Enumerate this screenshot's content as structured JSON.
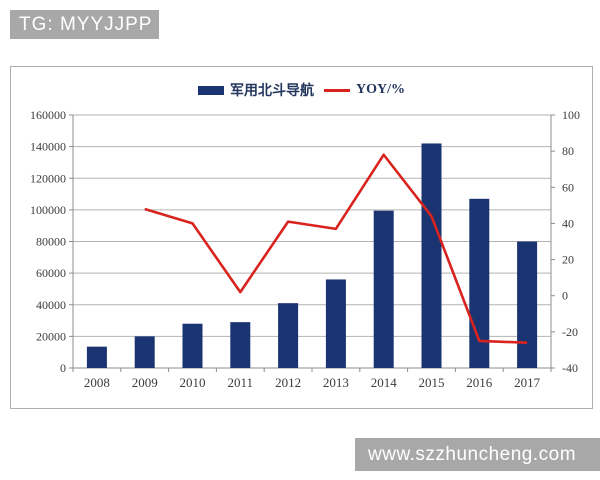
{
  "watermarks": {
    "top": "TG: MYYJJPP",
    "bottom": "www.szzhuncheng.com"
  },
  "legend": {
    "bar_label": "军用北斗导航",
    "line_label": "YOY/%"
  },
  "colors": {
    "bar": "#1a3472",
    "line": "#d9231f",
    "grid": "#b3b3b3",
    "axis": "#8c8c8c",
    "tick_text": "#3c3c3c",
    "banner_bg": "#a8a8a8",
    "banner_text": "#ffffff"
  },
  "chart_data": {
    "type": "bar",
    "subtype": "bar+line combo, dual axis",
    "categories": [
      "2008",
      "2009",
      "2010",
      "2011",
      "2012",
      "2013",
      "2014",
      "2015",
      "2016",
      "2017"
    ],
    "series": [
      {
        "name": "军用北斗导航",
        "type": "bar",
        "axis": "left",
        "values": [
          13500,
          20000,
          28000,
          29000,
          41000,
          56000,
          99500,
          142000,
          107000,
          80000
        ]
      },
      {
        "name": "YOY/%",
        "type": "line",
        "axis": "right",
        "values": [
          null,
          48,
          40,
          2,
          41,
          37,
          78,
          44,
          -25,
          -26
        ]
      }
    ],
    "left_axis": {
      "min": 0,
      "max": 160000,
      "step": 20000,
      "ticks": [
        0,
        20000,
        40000,
        60000,
        80000,
        100000,
        120000,
        140000,
        160000
      ]
    },
    "right_axis": {
      "min": -40,
      "max": 100,
      "step": 20,
      "ticks": [
        -40,
        -20,
        0,
        20,
        40,
        60,
        80,
        100
      ]
    },
    "grid": true,
    "legend_position": "top"
  }
}
